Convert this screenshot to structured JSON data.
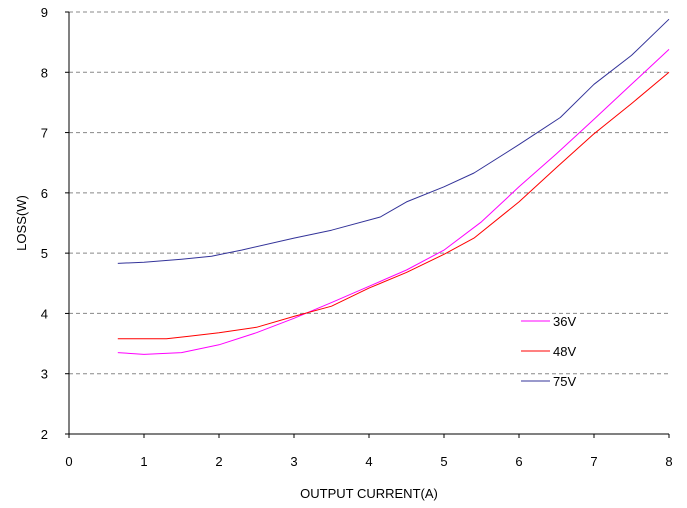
{
  "chart_data": {
    "type": "line",
    "title": "",
    "xlabel": "OUTPUT CURRENT(A)",
    "ylabel": "LOSS(W)",
    "xlim": [
      0,
      8
    ],
    "ylim": [
      2,
      9
    ],
    "xticks": [
      "0",
      "1",
      "2",
      "3",
      "4",
      "5",
      "6",
      "7",
      "8"
    ],
    "yticks": [
      "2",
      "3",
      "4",
      "5",
      "6",
      "7",
      "8",
      "9"
    ],
    "grid": "horizontal dashed",
    "legend_position": "right",
    "series": [
      {
        "name": "36V",
        "color": "#ff00ff",
        "x": [
          0.65,
          1.0,
          1.5,
          2.0,
          2.5,
          3.0,
          3.5,
          4.0,
          4.5,
          5.0,
          5.5,
          6.0,
          6.5,
          7.0,
          7.5,
          8.0
        ],
        "y": [
          3.35,
          3.32,
          3.35,
          3.48,
          3.68,
          3.92,
          4.18,
          4.45,
          4.72,
          5.05,
          5.52,
          6.1,
          6.65,
          7.22,
          7.8,
          8.38
        ]
      },
      {
        "name": "48V",
        "color": "#ff0000",
        "x": [
          0.65,
          1.0,
          1.3,
          1.6,
          2.0,
          2.5,
          3.0,
          3.5,
          4.0,
          4.5,
          5.0,
          5.4,
          6.0,
          6.5,
          7.0,
          7.5,
          8.0
        ],
        "y": [
          3.58,
          3.58,
          3.58,
          3.62,
          3.68,
          3.77,
          3.95,
          4.12,
          4.42,
          4.68,
          4.98,
          5.25,
          5.85,
          6.42,
          6.98,
          7.48,
          8.0
        ]
      },
      {
        "name": "75V",
        "color": "#333399",
        "x": [
          0.65,
          1.0,
          1.5,
          1.9,
          2.3,
          3.0,
          3.5,
          4.15,
          4.5,
          5.0,
          5.4,
          6.0,
          6.55,
          7.0,
          7.5,
          8.0
        ],
        "y": [
          4.83,
          4.85,
          4.9,
          4.95,
          5.05,
          5.25,
          5.38,
          5.6,
          5.85,
          6.1,
          6.33,
          6.8,
          7.25,
          7.8,
          8.28,
          8.88
        ]
      }
    ]
  }
}
